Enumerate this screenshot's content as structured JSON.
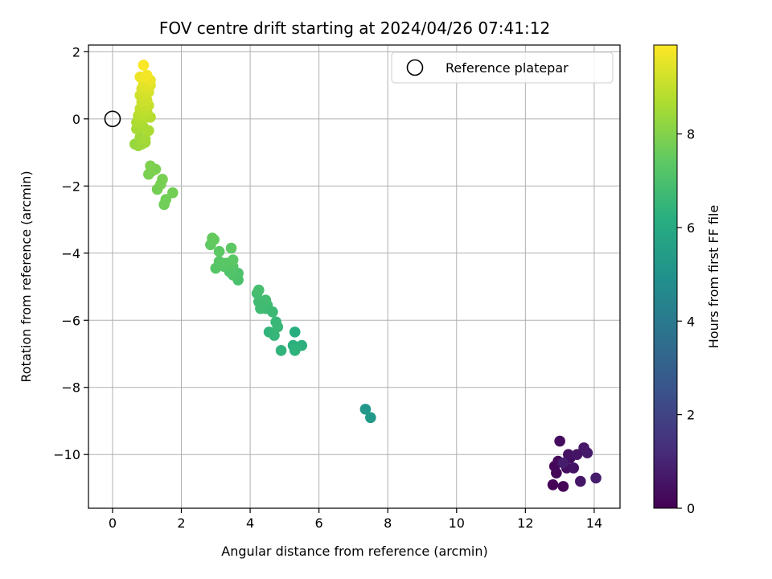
{
  "chart_data": {
    "type": "scatter",
    "title": "FOV centre drift starting at 2024/04/26 07:41:12",
    "xlabel": "Angular distance from reference (arcmin)",
    "ylabel": "Rotation from reference (arcmin)",
    "xlim": [
      -0.7,
      14.75
    ],
    "ylim": [
      -11.6,
      2.2
    ],
    "xticks": [
      0,
      2,
      4,
      6,
      8,
      10,
      12,
      14
    ],
    "yticks": [
      2,
      0,
      -2,
      -4,
      -6,
      -8,
      -10
    ],
    "ytick_labels": [
      "2",
      "0",
      "−2",
      "−4",
      "−6",
      "−8",
      "−10"
    ],
    "grid": true,
    "legend": {
      "label": "Reference platepar",
      "location": "top-right",
      "marker": "open-circle"
    },
    "reference_point": {
      "x": 0,
      "y": 0
    },
    "colorbar": {
      "label": "Hours from first FF file",
      "colormap": "viridis",
      "range": [
        0,
        9.9
      ],
      "ticks": [
        0,
        2,
        4,
        6,
        8
      ]
    },
    "points": [
      {
        "x": 12.8,
        "y": -10.9,
        "c": 0.05
      },
      {
        "x": 13.1,
        "y": -10.95,
        "c": 0.1
      },
      {
        "x": 12.9,
        "y": -10.55,
        "c": 0.15
      },
      {
        "x": 12.85,
        "y": -10.35,
        "c": 0.2
      },
      {
        "x": 12.95,
        "y": -10.2,
        "c": 0.25
      },
      {
        "x": 13.0,
        "y": -9.6,
        "c": 0.3
      },
      {
        "x": 13.2,
        "y": -10.4,
        "c": 0.35
      },
      {
        "x": 13.3,
        "y": -10.1,
        "c": 0.4
      },
      {
        "x": 13.25,
        "y": -10.0,
        "c": 0.45
      },
      {
        "x": 13.4,
        "y": -10.4,
        "c": 0.5
      },
      {
        "x": 13.5,
        "y": -10.0,
        "c": 0.55
      },
      {
        "x": 13.6,
        "y": -10.8,
        "c": 0.6
      },
      {
        "x": 13.7,
        "y": -9.8,
        "c": 0.65
      },
      {
        "x": 13.8,
        "y": -9.95,
        "c": 0.7
      },
      {
        "x": 14.05,
        "y": -10.7,
        "c": 0.75
      },
      {
        "x": 13.1,
        "y": -10.25,
        "c": 0.8
      },
      {
        "x": 7.35,
        "y": -8.65,
        "c": 5.2
      },
      {
        "x": 7.5,
        "y": -8.9,
        "c": 5.3
      },
      {
        "x": 5.3,
        "y": -6.35,
        "c": 6.2
      },
      {
        "x": 5.25,
        "y": -6.75,
        "c": 6.25
      },
      {
        "x": 5.5,
        "y": -6.75,
        "c": 6.3
      },
      {
        "x": 5.35,
        "y": -6.8,
        "c": 6.32
      },
      {
        "x": 5.3,
        "y": -6.9,
        "c": 6.35
      },
      {
        "x": 4.9,
        "y": -6.9,
        "c": 6.4
      },
      {
        "x": 4.55,
        "y": -6.35,
        "c": 6.45
      },
      {
        "x": 4.7,
        "y": -6.45,
        "c": 6.5
      },
      {
        "x": 4.75,
        "y": -6.05,
        "c": 6.55
      },
      {
        "x": 4.8,
        "y": -6.2,
        "c": 6.6
      },
      {
        "x": 4.65,
        "y": -5.75,
        "c": 6.65
      },
      {
        "x": 4.45,
        "y": -5.65,
        "c": 6.7
      },
      {
        "x": 4.5,
        "y": -5.55,
        "c": 6.72
      },
      {
        "x": 4.3,
        "y": -5.65,
        "c": 6.75
      },
      {
        "x": 4.25,
        "y": -5.45,
        "c": 6.78
      },
      {
        "x": 4.45,
        "y": -5.4,
        "c": 6.8
      },
      {
        "x": 4.2,
        "y": -5.2,
        "c": 6.85
      },
      {
        "x": 4.25,
        "y": -5.1,
        "c": 6.9
      },
      {
        "x": 3.65,
        "y": -4.8,
        "c": 7.0
      },
      {
        "x": 3.65,
        "y": -4.6,
        "c": 7.05
      },
      {
        "x": 3.5,
        "y": -4.65,
        "c": 7.1
      },
      {
        "x": 3.4,
        "y": -4.55,
        "c": 7.15
      },
      {
        "x": 3.5,
        "y": -4.4,
        "c": 7.2
      },
      {
        "x": 3.25,
        "y": -4.4,
        "c": 7.22
      },
      {
        "x": 3.0,
        "y": -4.45,
        "c": 7.25
      },
      {
        "x": 3.1,
        "y": -4.25,
        "c": 7.28
      },
      {
        "x": 3.3,
        "y": -4.3,
        "c": 7.3
      },
      {
        "x": 3.5,
        "y": -4.2,
        "c": 7.33
      },
      {
        "x": 3.1,
        "y": -3.95,
        "c": 7.36
      },
      {
        "x": 3.45,
        "y": -3.85,
        "c": 7.4
      },
      {
        "x": 2.85,
        "y": -3.75,
        "c": 7.45
      },
      {
        "x": 2.95,
        "y": -3.6,
        "c": 7.5
      },
      {
        "x": 2.9,
        "y": -3.55,
        "c": 7.52
      },
      {
        "x": 1.5,
        "y": -2.55,
        "c": 7.7
      },
      {
        "x": 1.55,
        "y": -2.4,
        "c": 7.72
      },
      {
        "x": 1.75,
        "y": -2.2,
        "c": 7.75
      },
      {
        "x": 1.3,
        "y": -2.1,
        "c": 7.78
      },
      {
        "x": 1.4,
        "y": -1.95,
        "c": 7.8
      },
      {
        "x": 1.45,
        "y": -1.8,
        "c": 7.82
      },
      {
        "x": 1.05,
        "y": -1.65,
        "c": 7.85
      },
      {
        "x": 1.15,
        "y": -1.55,
        "c": 7.88
      },
      {
        "x": 1.25,
        "y": -1.5,
        "c": 7.9
      },
      {
        "x": 1.1,
        "y": -1.4,
        "c": 7.92
      },
      {
        "x": 0.65,
        "y": -0.75,
        "c": 8.3
      },
      {
        "x": 0.75,
        "y": -0.8,
        "c": 8.35
      },
      {
        "x": 0.85,
        "y": -0.75,
        "c": 8.4
      },
      {
        "x": 0.95,
        "y": -0.7,
        "c": 8.42
      },
      {
        "x": 0.8,
        "y": -0.55,
        "c": 8.45
      },
      {
        "x": 0.95,
        "y": -0.6,
        "c": 8.5
      },
      {
        "x": 0.7,
        "y": -0.3,
        "c": 8.55
      },
      {
        "x": 0.9,
        "y": -0.25,
        "c": 8.6
      },
      {
        "x": 1.05,
        "y": -0.35,
        "c": 8.62
      },
      {
        "x": 0.7,
        "y": -0.1,
        "c": 8.65
      },
      {
        "x": 0.85,
        "y": -0.05,
        "c": 8.7
      },
      {
        "x": 1.0,
        "y": 0.05,
        "c": 8.75
      },
      {
        "x": 1.1,
        "y": 0.05,
        "c": 8.78
      },
      {
        "x": 0.75,
        "y": 0.1,
        "c": 8.8
      },
      {
        "x": 0.9,
        "y": 0.15,
        "c": 8.85
      },
      {
        "x": 1.0,
        "y": 0.2,
        "c": 8.9
      },
      {
        "x": 0.8,
        "y": 0.3,
        "c": 8.95
      },
      {
        "x": 0.95,
        "y": 0.35,
        "c": 9.0
      },
      {
        "x": 1.05,
        "y": 0.4,
        "c": 9.05
      },
      {
        "x": 0.85,
        "y": 0.5,
        "c": 9.1
      },
      {
        "x": 1.0,
        "y": 0.55,
        "c": 9.15
      },
      {
        "x": 0.8,
        "y": 0.7,
        "c": 9.2
      },
      {
        "x": 0.95,
        "y": 0.75,
        "c": 9.25
      },
      {
        "x": 1.05,
        "y": 0.8,
        "c": 9.3
      },
      {
        "x": 0.85,
        "y": 0.9,
        "c": 9.35
      },
      {
        "x": 1.0,
        "y": 0.95,
        "c": 9.4
      },
      {
        "x": 1.1,
        "y": 1.0,
        "c": 9.45
      },
      {
        "x": 0.9,
        "y": 1.05,
        "c": 9.5
      },
      {
        "x": 1.05,
        "y": 1.1,
        "c": 9.55
      },
      {
        "x": 1.1,
        "y": 1.15,
        "c": 9.6
      },
      {
        "x": 0.8,
        "y": 1.25,
        "c": 9.65
      },
      {
        "x": 0.95,
        "y": 1.25,
        "c": 9.7
      },
      {
        "x": 1.0,
        "y": 1.3,
        "c": 9.75
      },
      {
        "x": 0.9,
        "y": 1.6,
        "c": 9.85
      }
    ]
  }
}
